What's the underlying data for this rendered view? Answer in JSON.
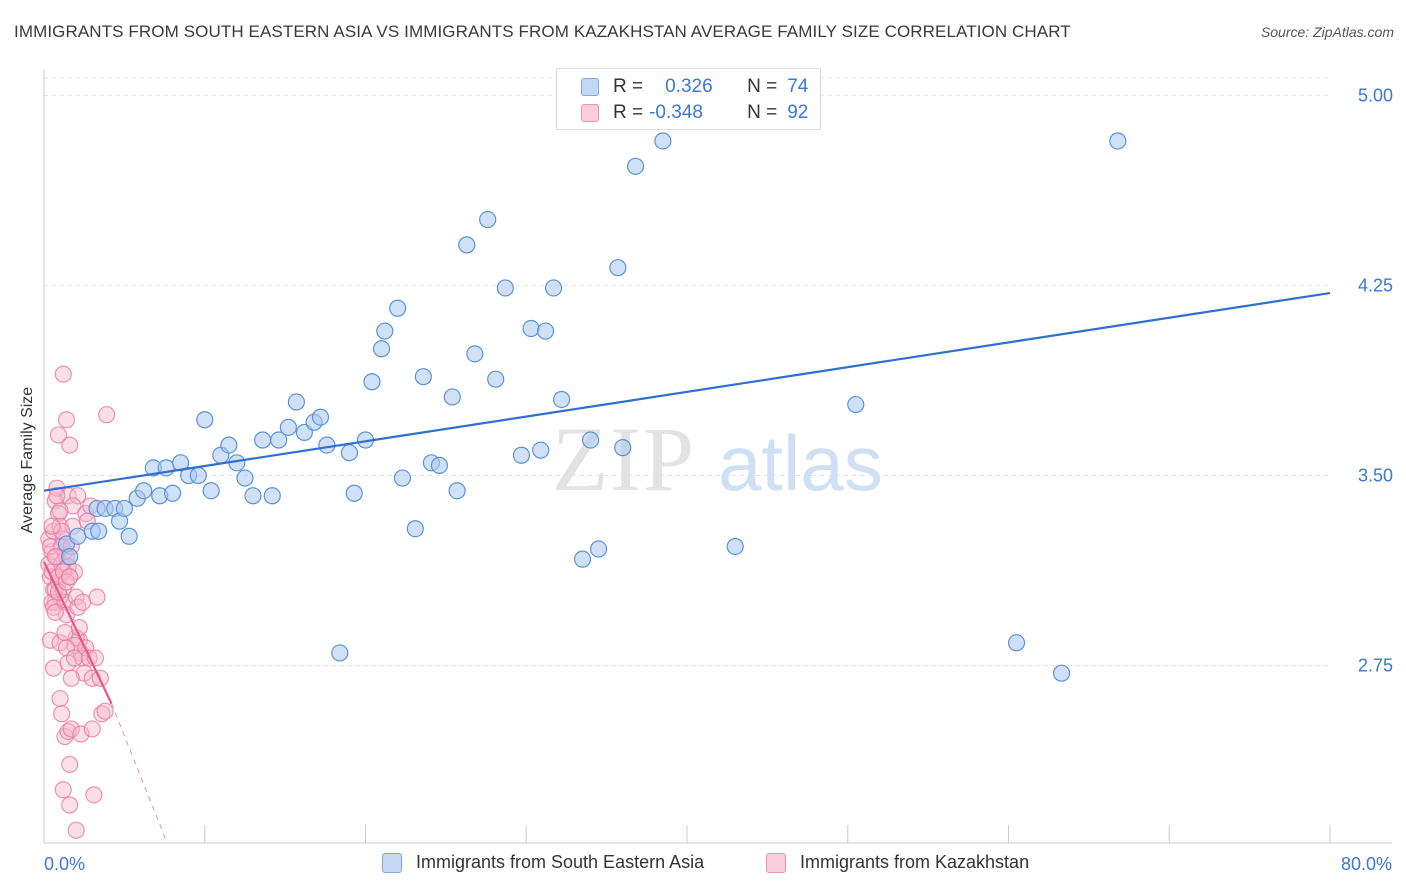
{
  "title": "IMMIGRANTS FROM SOUTH EASTERN ASIA VS IMMIGRANTS FROM KAZAKHSTAN AVERAGE FAMILY SIZE CORRELATION CHART",
  "source": "Source: ZipAtlas.com",
  "watermark": {
    "zip": "ZIP",
    "atlas": "atlas"
  },
  "colors": {
    "blue_fill": "#a9c8f0",
    "blue_stroke": "#5b93d9",
    "blue_line": "#2f6fd0",
    "pink_fill": "#f6b9cd",
    "pink_stroke": "#e8799f",
    "pink_line": "#e8578a",
    "tick_label": "#3a78d4",
    "grid": "#e4e4e4"
  },
  "stats": {
    "blue": {
      "r_label": "R =",
      "r_value": "0.326",
      "n_label": "N =",
      "n_value": "74"
    },
    "pink": {
      "r_label": "R =",
      "r_value": "-0.348",
      "n_label": "N =",
      "n_value": "92"
    }
  },
  "chart_data": {
    "type": "scatter",
    "xlabel": "",
    "ylabel": "Average Family Size",
    "xlim": [
      0,
      80
    ],
    "ylim": [
      2.05,
      5.1
    ],
    "x_tick_labels": [
      "0.0%",
      "80.0%"
    ],
    "y_ticks": [
      2.75,
      3.5,
      4.25,
      5.0
    ],
    "y_tick_labels": [
      "2.75",
      "3.50",
      "4.25",
      "5.00"
    ],
    "grid": true,
    "legend": "bottom",
    "series": [
      {
        "name": "Immigrants from South Eastern Asia",
        "color": "#a9c8f0",
        "trend": {
          "x": [
            0,
            80
          ],
          "y": [
            3.44,
            4.22
          ]
        },
        "points": [
          [
            1.4,
            3.23
          ],
          [
            1.6,
            3.18
          ],
          [
            2.1,
            3.26
          ],
          [
            3.0,
            3.28
          ],
          [
            3.4,
            3.28
          ],
          [
            3.3,
            3.37
          ],
          [
            3.8,
            3.37
          ],
          [
            4.4,
            3.37
          ],
          [
            4.7,
            3.32
          ],
          [
            5.0,
            3.37
          ],
          [
            5.3,
            3.26
          ],
          [
            5.8,
            3.41
          ],
          [
            6.2,
            3.44
          ],
          [
            6.8,
            3.53
          ],
          [
            7.2,
            3.42
          ],
          [
            7.6,
            3.53
          ],
          [
            8.0,
            3.43
          ],
          [
            8.5,
            3.55
          ],
          [
            9.0,
            3.5
          ],
          [
            9.6,
            3.5
          ],
          [
            10.0,
            3.72
          ],
          [
            10.4,
            3.44
          ],
          [
            11.0,
            3.58
          ],
          [
            11.5,
            3.62
          ],
          [
            12.0,
            3.55
          ],
          [
            12.5,
            3.49
          ],
          [
            13.0,
            3.42
          ],
          [
            13.6,
            3.64
          ],
          [
            14.2,
            3.42
          ],
          [
            14.6,
            3.64
          ],
          [
            15.2,
            3.69
          ],
          [
            15.7,
            3.79
          ],
          [
            16.2,
            3.67
          ],
          [
            16.8,
            3.71
          ],
          [
            17.2,
            3.73
          ],
          [
            17.6,
            3.62
          ],
          [
            18.4,
            2.8
          ],
          [
            19.0,
            3.59
          ],
          [
            19.3,
            3.43
          ],
          [
            20.0,
            3.64
          ],
          [
            20.4,
            3.87
          ],
          [
            21.0,
            4.0
          ],
          [
            21.2,
            4.07
          ],
          [
            22.0,
            4.16
          ],
          [
            22.3,
            3.49
          ],
          [
            23.1,
            3.29
          ],
          [
            23.6,
            3.89
          ],
          [
            24.1,
            3.55
          ],
          [
            24.6,
            3.54
          ],
          [
            25.4,
            3.81
          ],
          [
            25.7,
            3.44
          ],
          [
            26.3,
            4.41
          ],
          [
            26.8,
            3.98
          ],
          [
            27.6,
            4.51
          ],
          [
            28.1,
            3.88
          ],
          [
            28.7,
            4.24
          ],
          [
            29.7,
            3.58
          ],
          [
            30.3,
            4.08
          ],
          [
            30.9,
            3.6
          ],
          [
            31.2,
            4.07
          ],
          [
            31.7,
            4.24
          ],
          [
            32.2,
            3.8
          ],
          [
            33.5,
            3.17
          ],
          [
            34.0,
            3.64
          ],
          [
            34.5,
            3.21
          ],
          [
            35.7,
            4.32
          ],
          [
            36.0,
            3.61
          ],
          [
            36.8,
            4.72
          ],
          [
            38.5,
            4.82
          ],
          [
            43.0,
            3.22
          ],
          [
            50.5,
            3.78
          ],
          [
            60.5,
            2.84
          ],
          [
            63.3,
            2.72
          ],
          [
            66.8,
            4.82
          ]
        ]
      },
      {
        "name": "Immigrants from Kazakhstan",
        "color": "#f6b9cd",
        "trend": {
          "x": [
            0,
            4.2
          ],
          "y": [
            3.16,
            2.6
          ]
        },
        "trend_dashed": {
          "x": [
            4.2,
            7.6
          ],
          "y": [
            2.6,
            2.06
          ]
        },
        "points": [
          [
            0.3,
            3.15
          ],
          [
            0.4,
            3.1
          ],
          [
            0.5,
            3.2
          ],
          [
            0.6,
            3.05
          ],
          [
            0.3,
            3.25
          ],
          [
            0.7,
            3.0
          ],
          [
            0.5,
            3.12
          ],
          [
            0.8,
            3.18
          ],
          [
            0.9,
            3.08
          ],
          [
            0.4,
            3.22
          ],
          [
            1.0,
            3.02
          ],
          [
            1.1,
            3.15
          ],
          [
            0.6,
            3.28
          ],
          [
            0.7,
            3.4
          ],
          [
            0.8,
            3.45
          ],
          [
            0.9,
            3.35
          ],
          [
            1.0,
            3.3
          ],
          [
            1.2,
            3.25
          ],
          [
            1.3,
            3.2
          ],
          [
            1.4,
            3.18
          ],
          [
            1.5,
            3.14
          ],
          [
            0.5,
            3.0
          ],
          [
            0.6,
            2.98
          ],
          [
            0.7,
            3.05
          ],
          [
            0.9,
            3.1
          ],
          [
            1.1,
            3.22
          ],
          [
            1.2,
            3.05
          ],
          [
            1.3,
            3.0
          ],
          [
            1.4,
            2.95
          ],
          [
            1.6,
            3.1
          ],
          [
            1.7,
            3.22
          ],
          [
            1.8,
            3.3
          ],
          [
            1.5,
            3.42
          ],
          [
            1.9,
            3.12
          ],
          [
            2.0,
            3.02
          ],
          [
            2.1,
            2.98
          ],
          [
            2.2,
            2.85
          ],
          [
            2.3,
            2.8
          ],
          [
            2.0,
            2.86
          ],
          [
            1.9,
            2.83
          ],
          [
            2.4,
            2.78
          ],
          [
            2.5,
            2.72
          ],
          [
            2.6,
            2.82
          ],
          [
            2.8,
            2.78
          ],
          [
            3.0,
            2.7
          ],
          [
            3.2,
            2.78
          ],
          [
            3.3,
            3.02
          ],
          [
            3.5,
            2.7
          ],
          [
            3.6,
            2.56
          ],
          [
            3.8,
            2.57
          ],
          [
            1.2,
            3.9
          ],
          [
            1.4,
            3.72
          ],
          [
            1.6,
            3.62
          ],
          [
            0.9,
            3.66
          ],
          [
            2.1,
            3.42
          ],
          [
            1.8,
            3.38
          ],
          [
            2.6,
            3.35
          ],
          [
            2.7,
            3.32
          ],
          [
            2.9,
            3.38
          ],
          [
            0.4,
            2.85
          ],
          [
            0.6,
            2.74
          ],
          [
            1.0,
            2.84
          ],
          [
            1.3,
            2.88
          ],
          [
            1.4,
            2.82
          ],
          [
            1.5,
            2.76
          ],
          [
            1.7,
            2.7
          ],
          [
            1.9,
            2.78
          ],
          [
            2.2,
            2.9
          ],
          [
            1.0,
            2.62
          ],
          [
            1.1,
            2.56
          ],
          [
            1.3,
            2.47
          ],
          [
            1.5,
            2.49
          ],
          [
            1.6,
            2.36
          ],
          [
            1.7,
            2.5
          ],
          [
            1.2,
            2.26
          ],
          [
            1.6,
            2.2
          ],
          [
            2.3,
            2.48
          ],
          [
            3.0,
            2.5
          ],
          [
            3.1,
            2.24
          ],
          [
            2.0,
            2.1
          ],
          [
            0.8,
            3.42
          ],
          [
            1.0,
            3.36
          ],
          [
            0.7,
            3.18
          ],
          [
            1.1,
            3.28
          ],
          [
            1.2,
            3.12
          ],
          [
            0.9,
            3.04
          ],
          [
            1.4,
            3.08
          ],
          [
            2.4,
            3.0
          ],
          [
            0.5,
            3.3
          ],
          [
            3.9,
            3.74
          ],
          [
            1.6,
            3.1
          ],
          [
            0.7,
            2.96
          ]
        ]
      }
    ]
  },
  "legend_items": [
    "Immigrants from South Eastern Asia",
    "Immigrants from Kazakhstan"
  ]
}
